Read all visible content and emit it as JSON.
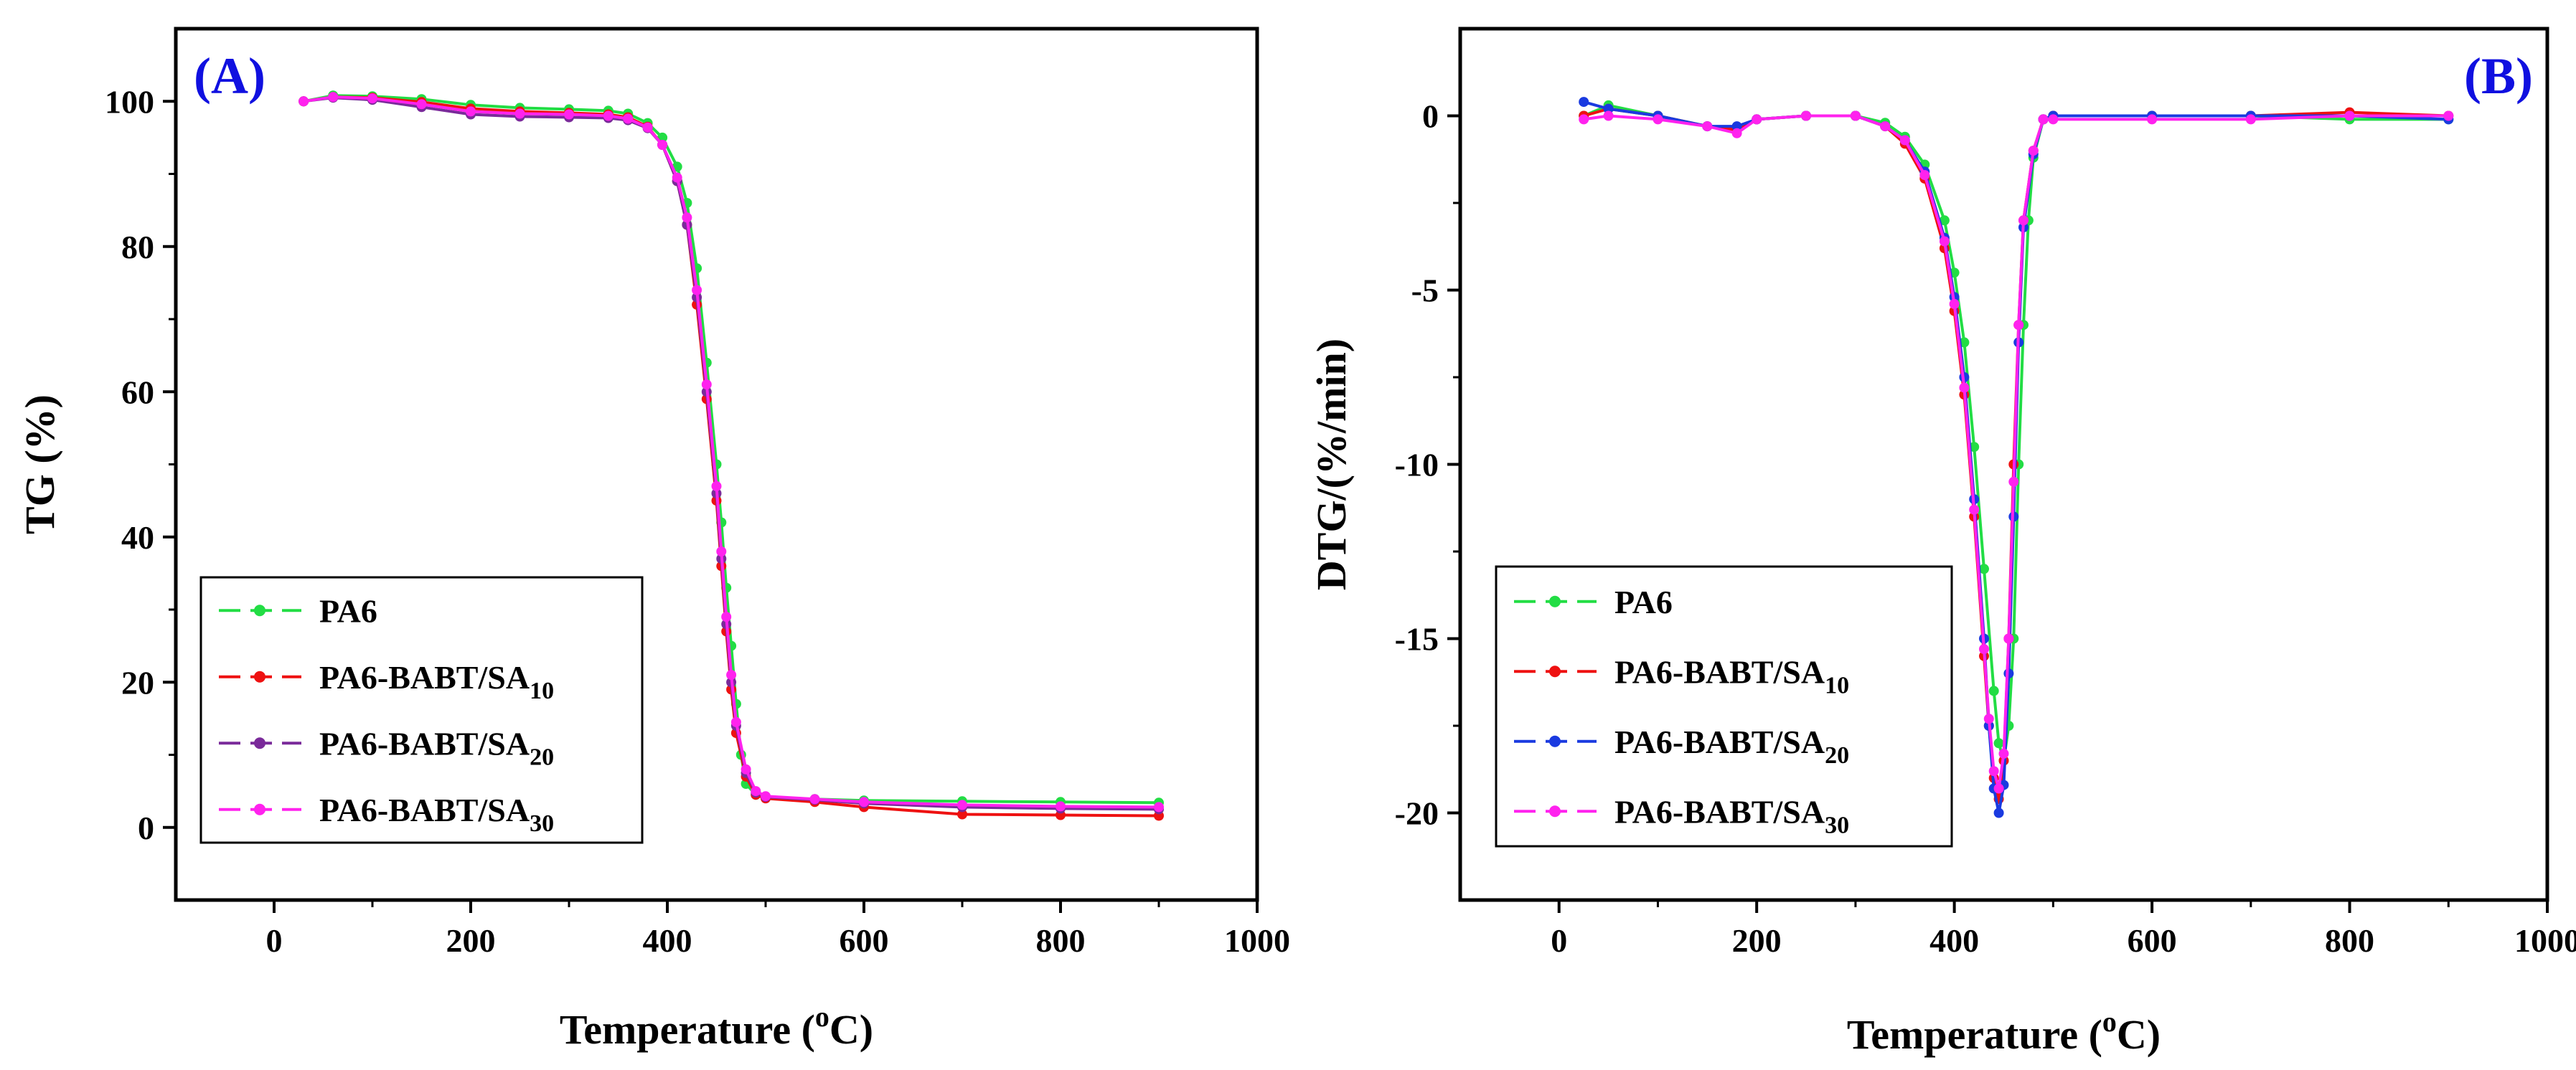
{
  "chart_data": [
    {
      "panel_label": "(A)",
      "type": "line",
      "xlabel": "Temperature (",
      "xlabel_sup": "o",
      "xlabel_tail": "C)",
      "ylabel": "TG (%)",
      "xlim": [
        -100,
        1000
      ],
      "ylim": [
        -10,
        110
      ],
      "xticks": [
        0,
        200,
        400,
        600,
        800,
        1000
      ],
      "yticks": [
        0,
        20,
        40,
        60,
        80,
        100
      ],
      "legend_position": "lower-left",
      "series": [
        {
          "name": "PA6",
          "sub": "",
          "color": "#22dd44",
          "x": [
            30,
            60,
            100,
            150,
            200,
            250,
            300,
            340,
            360,
            380,
            395,
            410,
            420,
            430,
            440,
            450,
            455,
            460,
            465,
            470,
            475,
            480,
            490,
            500,
            550,
            600,
            700,
            800,
            900
          ],
          "y": [
            100,
            100.8,
            100.7,
            100.3,
            99.5,
            99.1,
            98.9,
            98.7,
            98.3,
            97,
            95,
            91,
            86,
            77,
            64,
            50,
            42,
            33,
            25,
            17,
            10,
            6,
            4.5,
            4.1,
            3.9,
            3.7,
            3.6,
            3.5,
            3.4
          ]
        },
        {
          "name": "PA6-BABT/SA",
          "sub": "10",
          "color": "#ee1111",
          "x": [
            30,
            60,
            100,
            150,
            200,
            250,
            300,
            340,
            360,
            380,
            395,
            410,
            420,
            430,
            440,
            450,
            455,
            460,
            465,
            470,
            480,
            490,
            500,
            550,
            600,
            700,
            800,
            900
          ],
          "y": [
            100,
            100.6,
            100.5,
            99.9,
            99,
            98.6,
            98.4,
            98.2,
            97.8,
            96.5,
            94,
            89,
            83,
            72,
            59,
            45,
            36,
            27,
            19,
            13,
            7,
            4.5,
            4,
            3.5,
            2.8,
            1.8,
            1.7,
            1.6
          ]
        },
        {
          "name": "PA6-BABT/SA",
          "sub": "20",
          "color": "#7a2a9a",
          "x": [
            30,
            60,
            100,
            150,
            200,
            250,
            300,
            340,
            360,
            380,
            395,
            410,
            420,
            430,
            440,
            450,
            455,
            460,
            465,
            470,
            480,
            490,
            500,
            550,
            600,
            700,
            800,
            900
          ],
          "y": [
            100,
            100.5,
            100.2,
            99.2,
            98.2,
            97.9,
            97.8,
            97.7,
            97.4,
            96.3,
            94,
            89,
            83,
            73,
            60,
            46,
            37,
            28,
            20,
            14,
            7.5,
            4.8,
            4.2,
            3.8,
            3.3,
            2.8,
            2.6,
            2.5
          ]
        },
        {
          "name": "PA6-BABT/SA",
          "sub": "30",
          "color": "#ff22ee",
          "x": [
            30,
            60,
            100,
            150,
            200,
            250,
            300,
            340,
            360,
            380,
            395,
            410,
            420,
            430,
            440,
            450,
            455,
            460,
            465,
            470,
            480,
            490,
            500,
            550,
            600,
            700,
            800,
            900
          ],
          "y": [
            100,
            100.6,
            100.4,
            99.6,
            98.6,
            98.3,
            98.2,
            98,
            97.6,
            96.4,
            94,
            89.5,
            84,
            74,
            61,
            47,
            38,
            29,
            21,
            14.5,
            8,
            5,
            4.3,
            3.9,
            3.5,
            3.1,
            2.9,
            2.8
          ]
        }
      ]
    },
    {
      "panel_label": "(B)",
      "type": "line",
      "xlabel": "Temperature (",
      "xlabel_sup": "o",
      "xlabel_tail": "C)",
      "ylabel": "DTG/(%/min)",
      "xlim": [
        -100,
        1000
      ],
      "ylim": [
        -22.5,
        2.5
      ],
      "xticks": [
        0,
        200,
        400,
        600,
        800,
        1000
      ],
      "yticks": [
        0,
        -5,
        -10,
        -15,
        -20
      ],
      "legend_position": "lower-left",
      "series": [
        {
          "name": "PA6",
          "sub": "",
          "color": "#22dd44",
          "x": [
            25,
            50,
            100,
            150,
            180,
            200,
            250,
            300,
            330,
            350,
            370,
            390,
            400,
            410,
            420,
            430,
            440,
            445,
            450,
            455,
            460,
            465,
            470,
            475,
            480,
            490,
            500,
            600,
            700,
            800,
            900
          ],
          "y": [
            0,
            0.3,
            0,
            -0.3,
            -0.4,
            -0.1,
            0,
            0,
            -0.2,
            -0.6,
            -1.4,
            -3,
            -4.5,
            -6.5,
            -9.5,
            -13,
            -16.5,
            -18,
            -18.5,
            -17.5,
            -15,
            -10,
            -6,
            -3,
            -1.2,
            -0.1,
            0,
            0,
            0,
            -0.1,
            -0.1
          ]
        },
        {
          "name": "PA6-BABT/SA",
          "sub": "10",
          "color": "#ee1111",
          "x": [
            25,
            50,
            100,
            150,
            180,
            200,
            250,
            300,
            330,
            350,
            370,
            390,
            400,
            410,
            420,
            430,
            435,
            440,
            445,
            450,
            455,
            460,
            465,
            470,
            480,
            490,
            500,
            600,
            700,
            800,
            900
          ],
          "y": [
            0,
            0.2,
            0,
            -0.3,
            -0.4,
            -0.1,
            0,
            0,
            -0.3,
            -0.8,
            -1.8,
            -3.8,
            -5.6,
            -8,
            -11.5,
            -15.5,
            -17.5,
            -19,
            -19.6,
            -18.5,
            -15,
            -10,
            -6,
            -3,
            -1,
            -0.1,
            0,
            0,
            0,
            0.1,
            0
          ]
        },
        {
          "name": "PA6-BABT/SA",
          "sub": "20",
          "color": "#1a3ae0",
          "x": [
            25,
            50,
            100,
            150,
            180,
            200,
            250,
            300,
            330,
            350,
            370,
            390,
            400,
            410,
            420,
            430,
            435,
            440,
            445,
            450,
            455,
            460,
            465,
            470,
            480,
            490,
            500,
            600,
            700,
            800,
            900
          ],
          "y": [
            0.4,
            0.2,
            0,
            -0.3,
            -0.3,
            -0.1,
            0,
            0,
            -0.3,
            -0.7,
            -1.6,
            -3.5,
            -5.2,
            -7.5,
            -11,
            -15,
            -17.5,
            -19.3,
            -20,
            -19.2,
            -16,
            -11.5,
            -6.5,
            -3.2,
            -1.1,
            -0.1,
            0,
            0,
            0,
            0,
            -0.1
          ]
        },
        {
          "name": "PA6-BABT/SA",
          "sub": "30",
          "color": "#ff22ee",
          "x": [
            25,
            50,
            100,
            150,
            180,
            200,
            250,
            300,
            330,
            350,
            370,
            390,
            400,
            410,
            420,
            430,
            435,
            440,
            445,
            450,
            455,
            460,
            465,
            470,
            480,
            490,
            500,
            600,
            700,
            800,
            900
          ],
          "y": [
            -0.1,
            0,
            -0.1,
            -0.3,
            -0.5,
            -0.1,
            0,
            0,
            -0.3,
            -0.7,
            -1.7,
            -3.6,
            -5.4,
            -7.8,
            -11.3,
            -15.3,
            -17.3,
            -18.8,
            -19.3,
            -18.3,
            -15,
            -10.5,
            -6,
            -3,
            -1,
            -0.1,
            -0.1,
            -0.1,
            -0.1,
            0,
            0
          ]
        }
      ]
    }
  ]
}
